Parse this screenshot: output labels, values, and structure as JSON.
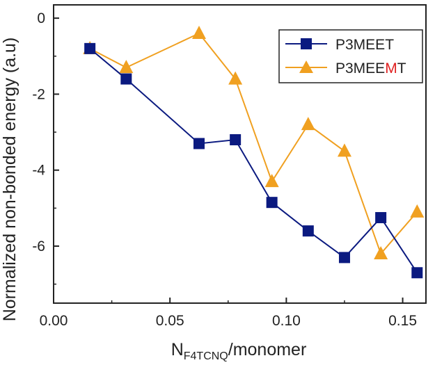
{
  "chart_data": {
    "type": "line",
    "xlabel_main": "N",
    "xlabel_sub": "F4TCNQ",
    "xlabel_rest": "/monomer",
    "ylabel": "Normalized non-bonded energy (a.u)",
    "xlim": [
      0.0,
      0.16
    ],
    "ylim": [
      -7.5,
      0.35
    ],
    "x_ticks": [
      0.0,
      0.05,
      0.1,
      0.15
    ],
    "x_tick_labels": [
      "0.00",
      "0.05",
      "0.10",
      "0.15"
    ],
    "y_ticks": [
      0,
      -2,
      -4,
      -6
    ],
    "y_tick_labels": [
      "0",
      "-2",
      "-4",
      "-6"
    ],
    "legend_position": "top-right",
    "series": [
      {
        "name": "P3MEET",
        "name_parts": [
          "P3MEET"
        ],
        "marker": "square",
        "color": "#0b1a80",
        "x": [
          0.0156,
          0.0312,
          0.0625,
          0.0781,
          0.0938,
          0.1094,
          0.125,
          0.1406,
          0.1562
        ],
        "y": [
          -0.8,
          -1.6,
          -3.3,
          -3.2,
          -4.85,
          -5.6,
          -6.3,
          -5.25,
          -6.7
        ]
      },
      {
        "name": "P3MEEMT",
        "name_parts": [
          "P3MEE",
          "M",
          "T"
        ],
        "marker": "triangle",
        "color": "#f0a020",
        "highlight_color": "#e02020",
        "x": [
          0.0156,
          0.0312,
          0.0625,
          0.0781,
          0.0938,
          0.1094,
          0.125,
          0.1406,
          0.1562
        ],
        "y": [
          -0.8,
          -1.3,
          -0.4,
          -1.6,
          -4.3,
          -2.8,
          -3.5,
          -6.2,
          -5.1
        ]
      }
    ]
  }
}
